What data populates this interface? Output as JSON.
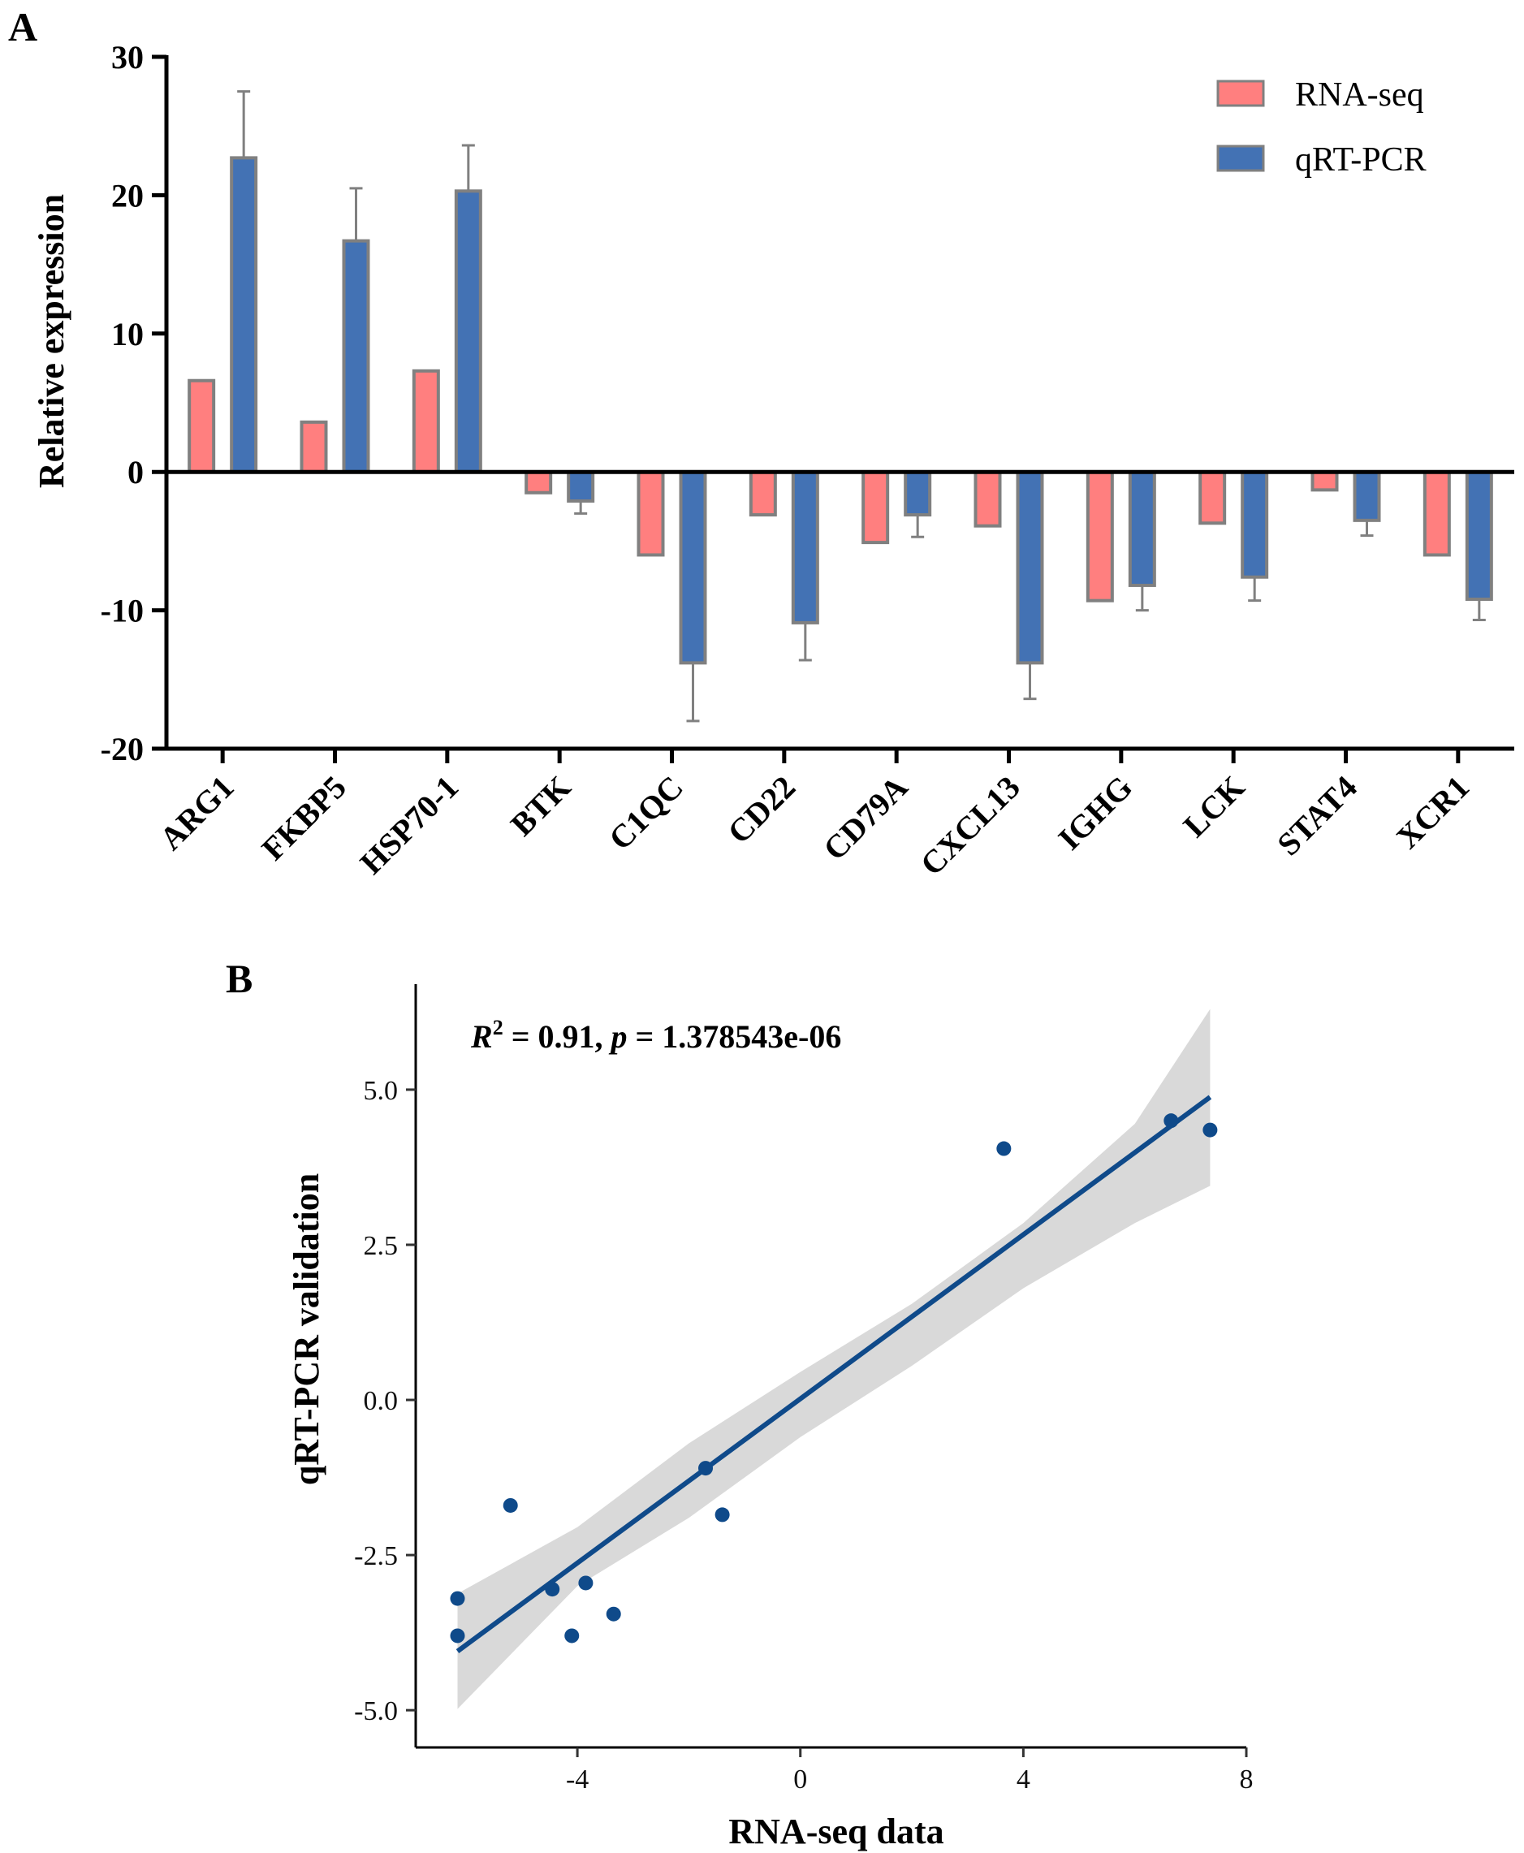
{
  "panel_a_label": "A",
  "panel_b_label": "B",
  "chart_data": [
    {
      "type": "bar",
      "panel": "A",
      "title": "",
      "xlabel": "",
      "ylabel": "Relative expression",
      "ylim": [
        -20,
        30
      ],
      "yticks": [
        "30",
        "20",
        "10",
        "0",
        "-10",
        "-20"
      ],
      "ytick_values": [
        30,
        20,
        10,
        0,
        -10,
        -20
      ],
      "categories": [
        "ARG1",
        "FKBP5",
        "HSP70-1",
        "BTK",
        "C1QC",
        "CD22",
        "CD79A",
        "CXCL13",
        "IGHG",
        "LCK",
        "STAT4",
        "XCR1"
      ],
      "legend_position": "top-right",
      "series": [
        {
          "name": "RNA-seq",
          "color": "#ff7f7f",
          "values": [
            6.6,
            3.6,
            7.3,
            -1.5,
            -6.0,
            -3.1,
            -5.1,
            -3.9,
            -9.3,
            -3.7,
            -1.3,
            -6.0
          ],
          "errors": [
            0,
            0,
            0,
            0,
            0,
            0,
            0,
            0,
            0,
            0,
            0,
            0
          ]
        },
        {
          "name": "qRT-PCR",
          "color": "#4372b4",
          "values": [
            22.7,
            16.7,
            20.3,
            -2.1,
            -13.8,
            -10.9,
            -3.1,
            -13.8,
            -8.2,
            -7.6,
            -3.5,
            -9.2
          ],
          "errors": [
            4.8,
            3.8,
            3.3,
            0.9,
            4.2,
            2.7,
            1.6,
            2.6,
            1.8,
            1.7,
            1.1,
            1.5
          ]
        }
      ]
    },
    {
      "type": "scatter",
      "panel": "B",
      "title": "",
      "xlabel": "RNA-seq data",
      "ylabel": "qRT-PCR validation",
      "xlim": [
        -6.9,
        8.0
      ],
      "ylim": [
        -5.6,
        6.7
      ],
      "xticks": [
        "-4",
        "0",
        "4",
        "8"
      ],
      "xtick_values": [
        -4,
        0,
        4,
        8
      ],
      "yticks": [
        "5.0",
        "2.5",
        "0.0",
        "-2.5",
        "-5.0"
      ],
      "ytick_values": [
        5.0,
        2.5,
        0.0,
        -2.5,
        -5.0
      ],
      "point_color": "#0f4a8a",
      "line_color": "#0f4a8a",
      "band_color": "#d9d9d9",
      "points": [
        {
          "x": 7.35,
          "y": 4.35
        },
        {
          "x": 6.65,
          "y": 4.5
        },
        {
          "x": 3.65,
          "y": 4.05
        },
        {
          "x": -1.7,
          "y": -1.1
        },
        {
          "x": -1.4,
          "y": -1.85
        },
        {
          "x": -3.35,
          "y": -3.45
        },
        {
          "x": -3.85,
          "y": -2.95
        },
        {
          "x": -4.45,
          "y": -3.05
        },
        {
          "x": -4.1,
          "y": -3.8
        },
        {
          "x": -5.2,
          "y": -1.7
        },
        {
          "x": -6.15,
          "y": -3.2
        },
        {
          "x": -6.15,
          "y": -3.8
        }
      ],
      "fit": {
        "x_start": -6.15,
        "y_start": -4.05,
        "x_end": 7.35,
        "y_end": 4.88
      },
      "confidence_band": {
        "x": [
          -6.15,
          -4.0,
          -2.0,
          0.0,
          2.0,
          4.0,
          6.0,
          7.35
        ],
        "lower": [
          -4.98,
          -3.0,
          -1.9,
          -0.6,
          0.55,
          1.8,
          2.85,
          3.45
        ],
        "upper": [
          -3.12,
          -2.05,
          -0.7,
          0.45,
          1.55,
          2.85,
          4.45,
          6.3
        ]
      },
      "annotation": {
        "r_label": "R",
        "r_sup": "2",
        "r_rest": " = 0.91, ",
        "p_label": "p",
        "p_rest": " = 1.378543e-06"
      }
    }
  ]
}
